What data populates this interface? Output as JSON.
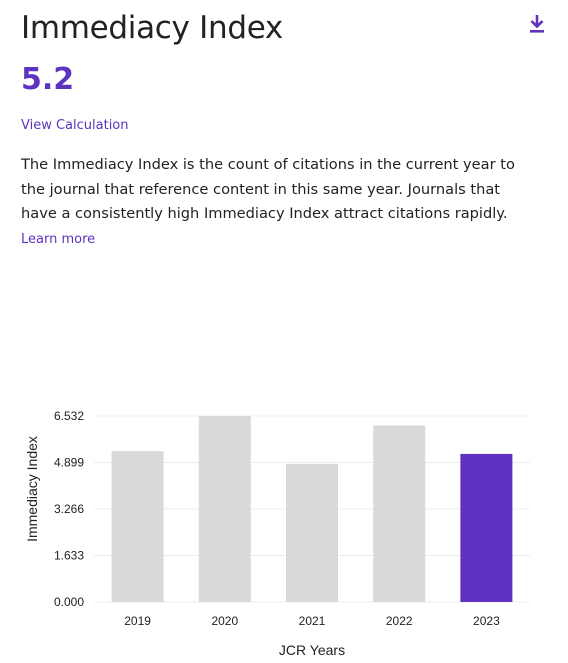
{
  "header": {
    "title": "Immediacy Index",
    "download_icon": "download-icon"
  },
  "metric": {
    "value": "5.2",
    "calc_link": "View Calculation"
  },
  "description": {
    "text": "The Immediacy Index is the count of citations in the current year to the journal that reference content in this same year. Journals that have a consistently high Immediacy Index attract citations rapidly.",
    "learn_more": "Learn more"
  },
  "colors": {
    "accent": "#5e33bf",
    "bar_default": "#d9d9d9",
    "bar_highlight": "#6030c0",
    "grid": "#ececec"
  },
  "chart_data": {
    "type": "bar",
    "categories": [
      "2019",
      "2020",
      "2021",
      "2022",
      "2023"
    ],
    "values": [
      5.3,
      6.53,
      4.85,
      6.2,
      5.2
    ],
    "highlight_category": "2023",
    "xlabel": "JCR Years",
    "ylabel": "Immediacy Index",
    "ylim": [
      0,
      6.532
    ],
    "yticks": [
      "0.000",
      "1.633",
      "3.266",
      "4.899",
      "6.532"
    ],
    "grid": true,
    "legend": "none"
  }
}
